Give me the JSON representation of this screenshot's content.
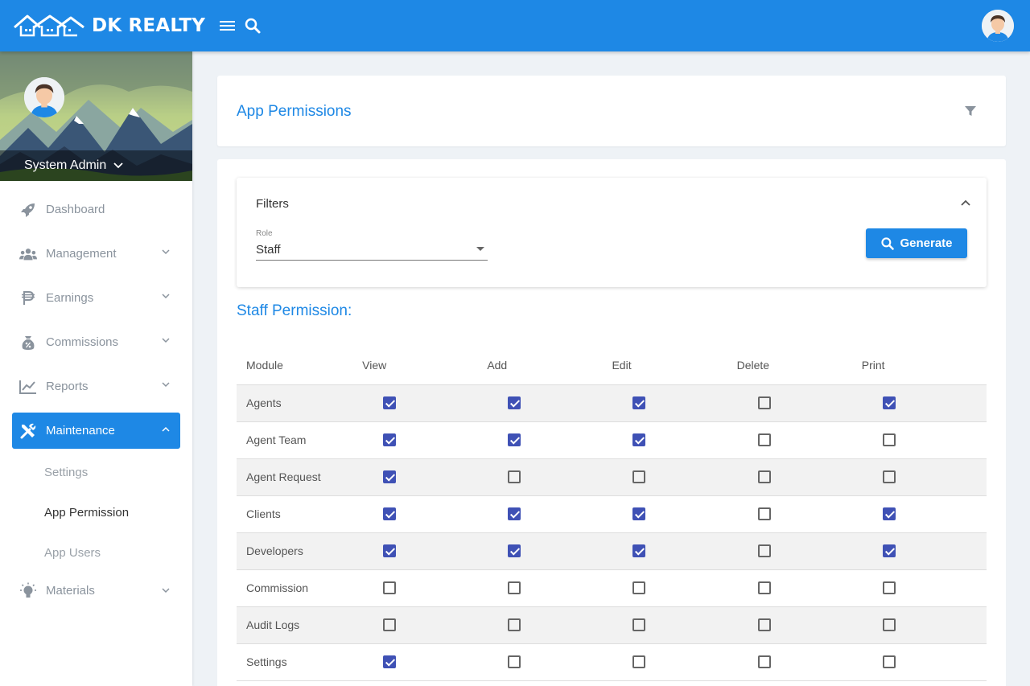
{
  "app": {
    "brand": "DK REALTY"
  },
  "user": {
    "name": "System Admin"
  },
  "sidebar": {
    "items": [
      {
        "label": "Dashboard",
        "icon": "rocket-icon"
      },
      {
        "label": "Management",
        "icon": "users-icon"
      },
      {
        "label": "Earnings",
        "icon": "peso-icon"
      },
      {
        "label": "Commissions",
        "icon": "money-bag-icon"
      },
      {
        "label": "Reports",
        "icon": "chart-line-icon"
      },
      {
        "label": "Maintenance",
        "icon": "tools-icon"
      },
      {
        "label": "Materials",
        "icon": "lightbulb-icon"
      }
    ],
    "maintenance_sub": [
      "Settings",
      "App Permission",
      "App Users"
    ]
  },
  "page": {
    "title": "App Permissions"
  },
  "filters": {
    "title": "Filters",
    "role_label": "Role",
    "role_value": "Staff",
    "generate_label": "Generate"
  },
  "permissions": {
    "title": "Staff Permission:",
    "columns": [
      "Module",
      "View",
      "Add",
      "Edit",
      "Delete",
      "Print"
    ],
    "rows": [
      {
        "module": "Agents",
        "view": true,
        "add": true,
        "edit": true,
        "delete": false,
        "print": true
      },
      {
        "module": "Agent Team",
        "view": true,
        "add": true,
        "edit": true,
        "delete": false,
        "print": false
      },
      {
        "module": "Agent Request",
        "view": true,
        "add": false,
        "edit": false,
        "delete": false,
        "print": false
      },
      {
        "module": "Clients",
        "view": true,
        "add": true,
        "edit": true,
        "delete": false,
        "print": true
      },
      {
        "module": "Developers",
        "view": true,
        "add": true,
        "edit": true,
        "delete": false,
        "print": true
      },
      {
        "module": "Commission",
        "view": false,
        "add": false,
        "edit": false,
        "delete": false,
        "print": false
      },
      {
        "module": "Audit Logs",
        "view": false,
        "add": false,
        "edit": false,
        "delete": false,
        "print": false
      },
      {
        "module": "Settings",
        "view": true,
        "add": false,
        "edit": false,
        "delete": false,
        "print": false
      }
    ]
  },
  "colors": {
    "primary": "#1e88e5",
    "checkbox": "#3f51b5"
  }
}
